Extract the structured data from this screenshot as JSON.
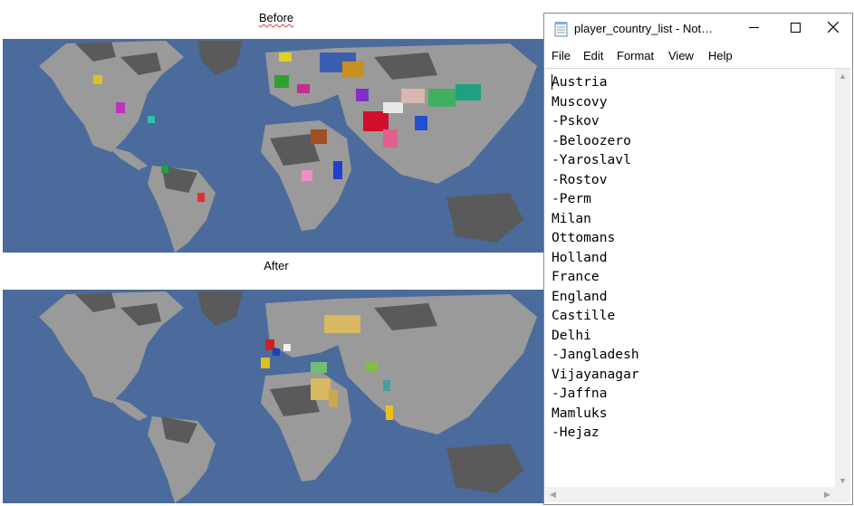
{
  "captions": {
    "before": "Before",
    "after": "After"
  },
  "notepad": {
    "title": "player_country_list - Not…",
    "menu": [
      "File",
      "Edit",
      "Format",
      "View",
      "Help"
    ],
    "lines": [
      "Austria",
      "Muscovy",
      "-Pskov",
      "-Beloozero",
      "-Yaroslavl",
      "-Rostov",
      "-Perm",
      "Milan",
      "Ottomans",
      "Holland",
      "France",
      "England",
      "Castille",
      "Delhi",
      "-Jangladesh",
      "Vijayanagar",
      "-Jaffna",
      "Mamluks",
      "-Hejaz"
    ]
  },
  "icons": {
    "app": "notepad-icon",
    "minimize": "minimize-icon",
    "maximize": "maximize-icon",
    "close": "close-icon"
  },
  "colors": {
    "ocean": "#4a6b9c",
    "land": "#9a9a9a",
    "wasteland": "#5a5a5a"
  }
}
